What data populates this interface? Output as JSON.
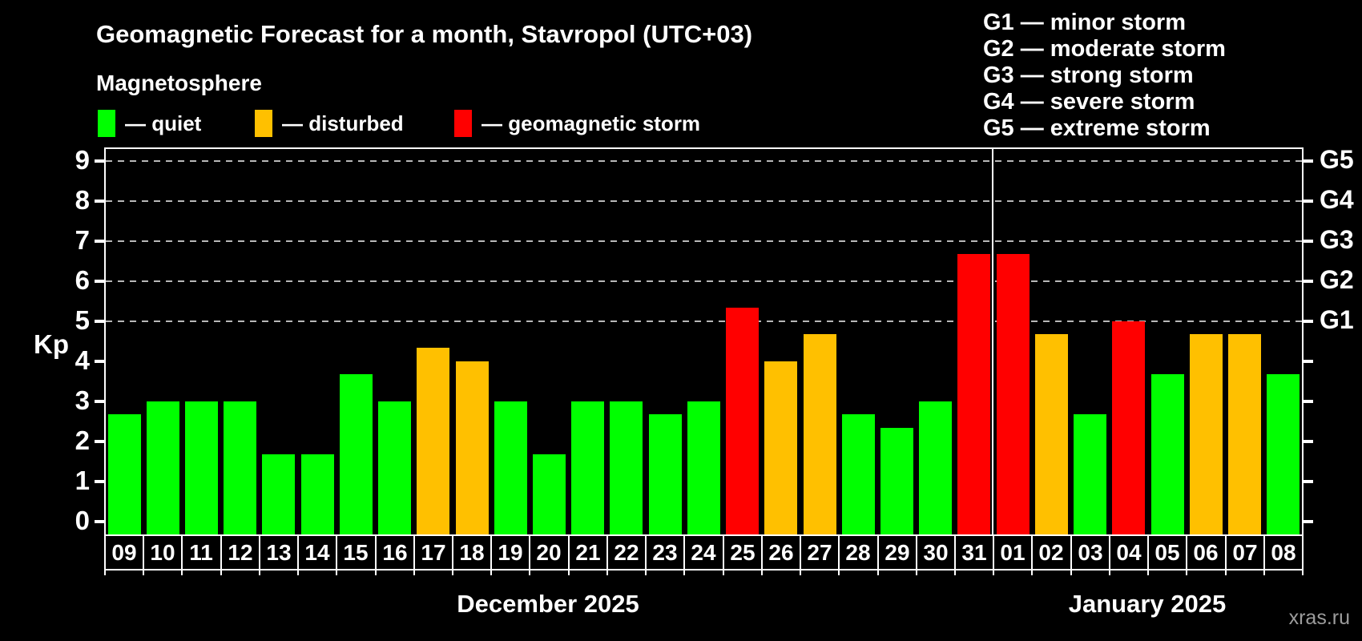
{
  "header": {
    "title": "Geomagnetic Forecast for a month, Stavropol (UTC+03)",
    "subtitle": "Magnetosphere",
    "legend": [
      {
        "key": "quiet",
        "label": "— quiet"
      },
      {
        "key": "disturbed",
        "label": "— disturbed"
      },
      {
        "key": "storm",
        "label": "— geomagnetic storm"
      }
    ]
  },
  "storm_scale": [
    "G1 — minor storm",
    "G2 — moderate storm",
    "G3 — strong storm",
    "G4 — severe storm",
    "G5 — extreme storm"
  ],
  "colors": {
    "quiet": "#00ff00",
    "disturbed": "#ffc000",
    "storm": "#ff0000",
    "grid": "#b8b8b8",
    "frame": "#ffffff",
    "watermark": "#9c9c9c"
  },
  "watermark": "xras.ru",
  "chart_data": {
    "type": "bar",
    "title": "Geomagnetic Forecast for a month, Stavropol (UTC+03)",
    "ylabel": "Kp",
    "ylim": [
      0,
      9.6
    ],
    "y_ticks": [
      0,
      1,
      2,
      3,
      4,
      5,
      6,
      7,
      8,
      9
    ],
    "grid_levels_kp": [
      5,
      6,
      7,
      8,
      9
    ],
    "grid": "dashed horizontal lines only at Kp 5..9",
    "legend_position": "top-left",
    "right_axis": [
      {
        "label": "G1",
        "kp": 5
      },
      {
        "label": "G2",
        "kp": 6
      },
      {
        "label": "G3",
        "kp": 7
      },
      {
        "label": "G4",
        "kp": 8
      },
      {
        "label": "G5",
        "kp": 9
      }
    ],
    "months": [
      {
        "label": "December 2025",
        "days_count": 23
      },
      {
        "label": "January 2025",
        "days_count": 8
      }
    ],
    "days": [
      {
        "date": "09",
        "kp": 2.67,
        "status": "quiet"
      },
      {
        "date": "10",
        "kp": 3.0,
        "status": "quiet"
      },
      {
        "date": "11",
        "kp": 3.0,
        "status": "quiet"
      },
      {
        "date": "12",
        "kp": 3.0,
        "status": "quiet"
      },
      {
        "date": "13",
        "kp": 1.67,
        "status": "quiet"
      },
      {
        "date": "14",
        "kp": 1.67,
        "status": "quiet"
      },
      {
        "date": "15",
        "kp": 3.67,
        "status": "quiet"
      },
      {
        "date": "16",
        "kp": 3.0,
        "status": "quiet"
      },
      {
        "date": "17",
        "kp": 4.33,
        "status": "disturbed"
      },
      {
        "date": "18",
        "kp": 4.0,
        "status": "disturbed"
      },
      {
        "date": "19",
        "kp": 3.0,
        "status": "quiet"
      },
      {
        "date": "20",
        "kp": 1.67,
        "status": "quiet"
      },
      {
        "date": "21",
        "kp": 3.0,
        "status": "quiet"
      },
      {
        "date": "22",
        "kp": 3.0,
        "status": "quiet"
      },
      {
        "date": "23",
        "kp": 2.67,
        "status": "quiet"
      },
      {
        "date": "24",
        "kp": 3.0,
        "status": "quiet"
      },
      {
        "date": "25",
        "kp": 5.33,
        "status": "storm"
      },
      {
        "date": "26",
        "kp": 4.0,
        "status": "disturbed"
      },
      {
        "date": "27",
        "kp": 4.67,
        "status": "disturbed"
      },
      {
        "date": "28",
        "kp": 2.67,
        "status": "quiet"
      },
      {
        "date": "29",
        "kp": 2.33,
        "status": "quiet"
      },
      {
        "date": "30",
        "kp": 3.0,
        "status": "quiet"
      },
      {
        "date": "31",
        "kp": 6.67,
        "status": "storm"
      },
      {
        "date": "01",
        "kp": 6.67,
        "status": "storm"
      },
      {
        "date": "02",
        "kp": 4.67,
        "status": "disturbed"
      },
      {
        "date": "03",
        "kp": 2.67,
        "status": "quiet"
      },
      {
        "date": "04",
        "kp": 5.0,
        "status": "storm"
      },
      {
        "date": "05",
        "kp": 3.67,
        "status": "quiet"
      },
      {
        "date": "06",
        "kp": 4.67,
        "status": "disturbed"
      },
      {
        "date": "07",
        "kp": 4.67,
        "status": "disturbed"
      },
      {
        "date": "08",
        "kp": 3.67,
        "status": "quiet"
      }
    ]
  }
}
